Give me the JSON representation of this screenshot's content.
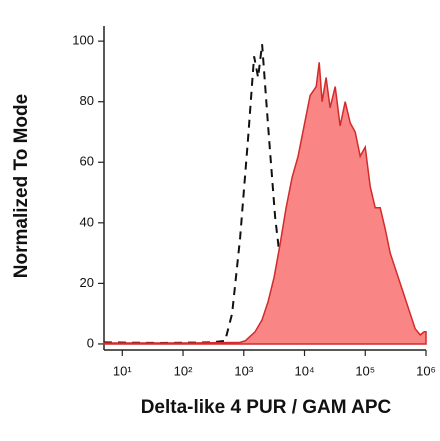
{
  "chart_data": {
    "type": "histogram-overlay",
    "xlabel": "Delta-like 4 PUR / GAM APC",
    "ylabel": "Normalized To Mode",
    "xscale": "log",
    "xlim": [
      5,
      1000000
    ],
    "ylim": [
      -2,
      105
    ],
    "xticks": [
      {
        "value": 10,
        "label": "10¹"
      },
      {
        "value": 100,
        "label": "10²"
      },
      {
        "value": 1000,
        "label": "10³"
      },
      {
        "value": 10000,
        "label": "10⁴"
      },
      {
        "value": 100000,
        "label": "10⁵"
      },
      {
        "value": 1000000,
        "label": "10⁶"
      }
    ],
    "yticks": [
      0,
      20,
      40,
      60,
      80,
      100
    ],
    "series": [
      {
        "style": "dashed",
        "color": "#111111",
        "x": [
          5,
          42,
          279,
          492,
          642,
          870,
          1178,
          1479,
          1722,
          2005,
          2518,
          3282,
          4277,
          5793,
          8469,
          18070,
          375800,
          1000000
        ],
        "values": [
          0.5,
          0.3,
          0.5,
          1,
          10,
          35,
          68,
          95,
          88,
          99,
          72,
          42,
          22,
          6,
          1,
          0.3,
          0.2,
          0.2
        ]
      },
      {
        "style": "filled",
        "color": "#d42a2a",
        "fill": "#f98585",
        "x": [
          5,
          131,
          870,
          1052,
          1537,
          2005,
          2518,
          3162,
          3970,
          4977,
          6250,
          7850,
          9860,
          12380,
          15560,
          17420,
          19500,
          22700,
          26400,
          31970,
          38600,
          46700,
          56500,
          68200,
          82400,
          99700,
          120500,
          145800,
          176200,
          212800,
          257600,
          311100,
          375800,
          455000,
          549500,
          665000,
          803500,
          935500,
          1000000
        ],
        "values": [
          0.3,
          0.3,
          0.5,
          1,
          4,
          8,
          14,
          22,
          33,
          45,
          55,
          62,
          72,
          82,
          85,
          93,
          80,
          88,
          78,
          85,
          72,
          80,
          73,
          70,
          62,
          65,
          52,
          45,
          45,
          38,
          30,
          25,
          20,
          15,
          10,
          5,
          3,
          4,
          4
        ]
      }
    ]
  }
}
